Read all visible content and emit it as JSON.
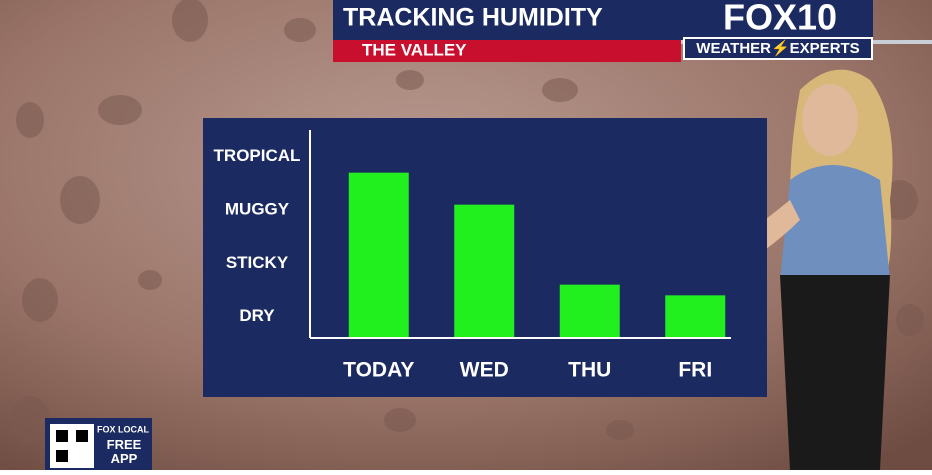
{
  "chart_data": {
    "type": "bar",
    "title": "TRACKING HUMIDITY",
    "subtitle": "THE VALLEY",
    "categories": [
      "TODAY",
      "WED",
      "THU",
      "FRI"
    ],
    "values": [
      3.7,
      3.1,
      1.6,
      1.4
    ],
    "color": "#22f01e",
    "ylim": [
      0.6,
      4.5
    ],
    "yticks": [
      {
        "value": 1,
        "label": "DRY"
      },
      {
        "value": 2,
        "label": "STICKY"
      },
      {
        "value": 3,
        "label": "MUGGY"
      },
      {
        "value": 4,
        "label": "TROPICAL"
      }
    ],
    "grid": false
  },
  "branding": {
    "logo": "FOX10",
    "tagline": "WEATHER⚡EXPERTS"
  },
  "app_promo": {
    "badge": "FOX LOCAL",
    "text": "FREE APP"
  }
}
